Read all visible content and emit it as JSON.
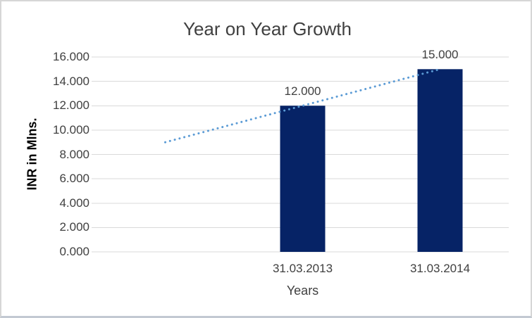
{
  "chart_data": {
    "type": "bar",
    "title": "Year on Year Growth",
    "xlabel": "Years",
    "ylabel": "INR in Mlns.",
    "categories": [
      "",
      "31.03.2013",
      "31.03.2014"
    ],
    "series": [
      {
        "name": "values",
        "type": "bar",
        "values": [
          null,
          12,
          15
        ]
      },
      {
        "name": "linear-trendline",
        "type": "dotted-line",
        "values": [
          9,
          12,
          15
        ]
      }
    ],
    "data_labels": [
      "",
      "12.000",
      "15.000"
    ],
    "y_ticks": [
      0,
      2,
      4,
      6,
      8,
      10,
      12,
      14,
      16
    ],
    "y_tick_labels": [
      "0.000",
      "2.000",
      "4.000",
      "6.000",
      "8.000",
      "10.000",
      "12.000",
      "14.000",
      "16.000"
    ],
    "ylim": [
      0,
      16
    ],
    "grid": "horizontal",
    "legend": "none"
  },
  "colors": {
    "bar": "#062366",
    "trendline": "#5B9BD5",
    "gridline": "#D9D9D9",
    "text": "#404040",
    "y_axis_title": "#000000"
  }
}
